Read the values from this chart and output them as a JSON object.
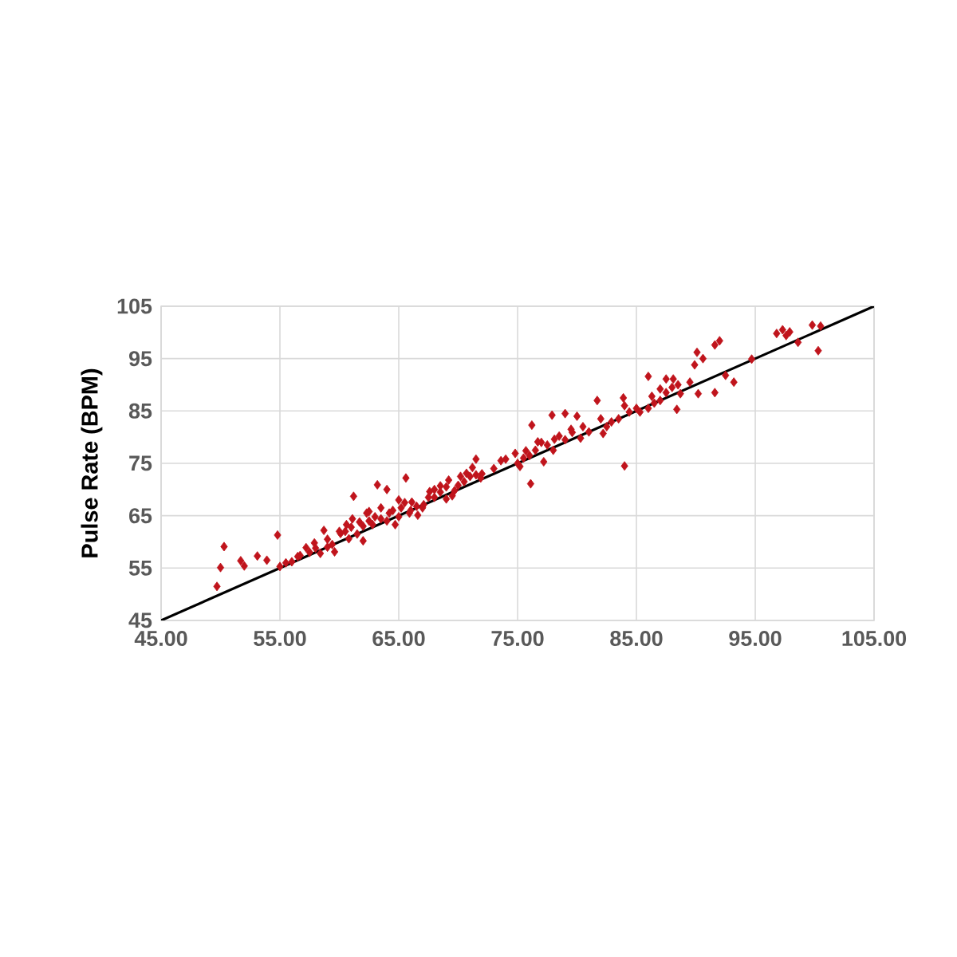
{
  "chart_data": {
    "type": "scatter",
    "ylabel": "Pulse Rate  (BPM)",
    "xlim": [
      45,
      105
    ],
    "ylim": [
      45,
      105
    ],
    "xticks": [
      {
        "value": 45,
        "label": "45.00"
      },
      {
        "value": 55,
        "label": "55.00"
      },
      {
        "value": 65,
        "label": "65.00"
      },
      {
        "value": 75,
        "label": "75.00"
      },
      {
        "value": 85,
        "label": "85.00"
      },
      {
        "value": 95,
        "label": "95.00"
      },
      {
        "value": 105,
        "label": "105.00"
      }
    ],
    "yticks": [
      45,
      55,
      65,
      75,
      85,
      95,
      105
    ],
    "grid": true,
    "series": [
      {
        "color": "#c0141c",
        "marker": "diamond",
        "x": [
          49.7,
          50.0,
          50.3,
          51.7,
          52.0,
          53.1,
          53.9,
          54.8,
          55.0,
          56.0,
          56.7,
          57.2,
          57.9,
          58.4,
          58.7,
          59.4,
          59.6,
          60.1,
          60.6,
          60.8,
          61.1,
          61.2,
          61.7,
          62.0,
          62.3,
          62.8,
          63.2,
          63.5,
          64.0,
          64.2,
          64.7,
          65.2,
          65.6,
          65.9,
          66.1,
          66.6,
          67.1,
          67.6,
          68.0,
          68.5,
          69.0,
          69.2,
          69.7,
          70.2,
          70.7,
          71.2,
          71.5,
          71.9,
          73.6,
          74.8,
          75.2,
          75.7,
          76.1,
          76.2,
          76.7,
          77.2,
          77.9,
          78.1,
          79.0,
          79.6,
          80.0,
          80.3,
          81.7,
          82.2,
          82.9,
          83.9,
          84.0,
          84.4,
          85.3,
          86.0,
          86.3,
          87.0,
          87.5,
          88.1,
          88.4,
          88.7,
          89.9,
          90.1,
          90.2,
          90.6,
          91.6,
          91.6,
          92.0,
          92.5,
          93.2,
          94.7,
          96.8,
          97.3,
          97.6,
          97.9,
          98.6,
          99.8,
          100.3,
          100.5,
          56.5,
          58.0,
          59.0,
          60.0,
          61.0,
          62.5,
          63.0,
          64.5,
          65.5,
          66.5,
          67.5,
          68.5,
          70.0,
          71.0,
          72.0,
          74.0,
          75.5,
          76.5,
          77.5,
          78.5,
          79.5,
          81.0,
          82.5,
          83.5,
          85.0,
          86.5,
          87.5,
          88.5,
          89.5,
          62.0,
          62.5,
          63.5,
          64.0,
          65.0,
          65.0,
          66.0,
          67.0,
          68.0,
          69.0,
          69.5,
          70.5,
          71.5,
          60.5,
          61.5,
          59.0,
          57.5,
          55.5,
          76.0,
          77.0,
          78.0,
          79.0,
          80.5,
          82.0,
          84.0,
          86.0,
          87.0,
          88.0,
          75.0,
          73.0
        ],
        "values": [
          51.5,
          55.1,
          59.1,
          56.4,
          55.4,
          57.3,
          56.5,
          61.3,
          55.3,
          56.2,
          57.4,
          58.9,
          59.8,
          57.8,
          62.2,
          59.5,
          58.1,
          61.6,
          63.3,
          60.6,
          64.4,
          68.7,
          63.8,
          60.2,
          65.5,
          63.3,
          70.9,
          64.4,
          70.0,
          65.5,
          63.3,
          66.5,
          72.2,
          65.5,
          67.6,
          65.1,
          67.1,
          69.6,
          70.0,
          70.7,
          68.2,
          71.8,
          69.8,
          72.5,
          73.1,
          74.2,
          75.8,
          72.2,
          75.5,
          76.9,
          74.4,
          77.4,
          71.1,
          82.3,
          79.1,
          75.3,
          84.2,
          79.6,
          84.5,
          80.9,
          84.0,
          79.8,
          87.0,
          80.7,
          82.9,
          87.5,
          74.5,
          84.8,
          84.8,
          91.6,
          87.8,
          89.2,
          91.1,
          91.1,
          85.3,
          88.3,
          93.8,
          96.2,
          88.3,
          95.0,
          97.6,
          88.5,
          98.4,
          91.8,
          90.5,
          94.9,
          99.8,
          100.5,
          99.4,
          100.1,
          98.1,
          101.4,
          96.5,
          101.2,
          57.2,
          58.8,
          60.5,
          62.0,
          62.8,
          64.0,
          64.8,
          66.0,
          67.5,
          66.8,
          68.5,
          69.5,
          70.8,
          72.5,
          73.0,
          75.8,
          76.0,
          77.5,
          78.5,
          80.2,
          81.5,
          81.0,
          82.0,
          83.5,
          85.5,
          86.5,
          88.5,
          90.0,
          90.5,
          63.0,
          65.8,
          66.5,
          64.0,
          64.8,
          68.0,
          66.0,
          66.5,
          68.5,
          70.5,
          68.8,
          71.5,
          72.8,
          62.0,
          61.5,
          59.0,
          58.0,
          56.0,
          76.5,
          79.0,
          77.5,
          79.5,
          82.0,
          83.5,
          86.0,
          85.5,
          87.0,
          89.5,
          75.0,
          74.0
        ]
      },
      {
        "type": "line",
        "color": "#000000",
        "marker": "none",
        "line_style": "solid",
        "x": [
          45,
          105
        ],
        "values": [
          45,
          105
        ]
      }
    ]
  }
}
